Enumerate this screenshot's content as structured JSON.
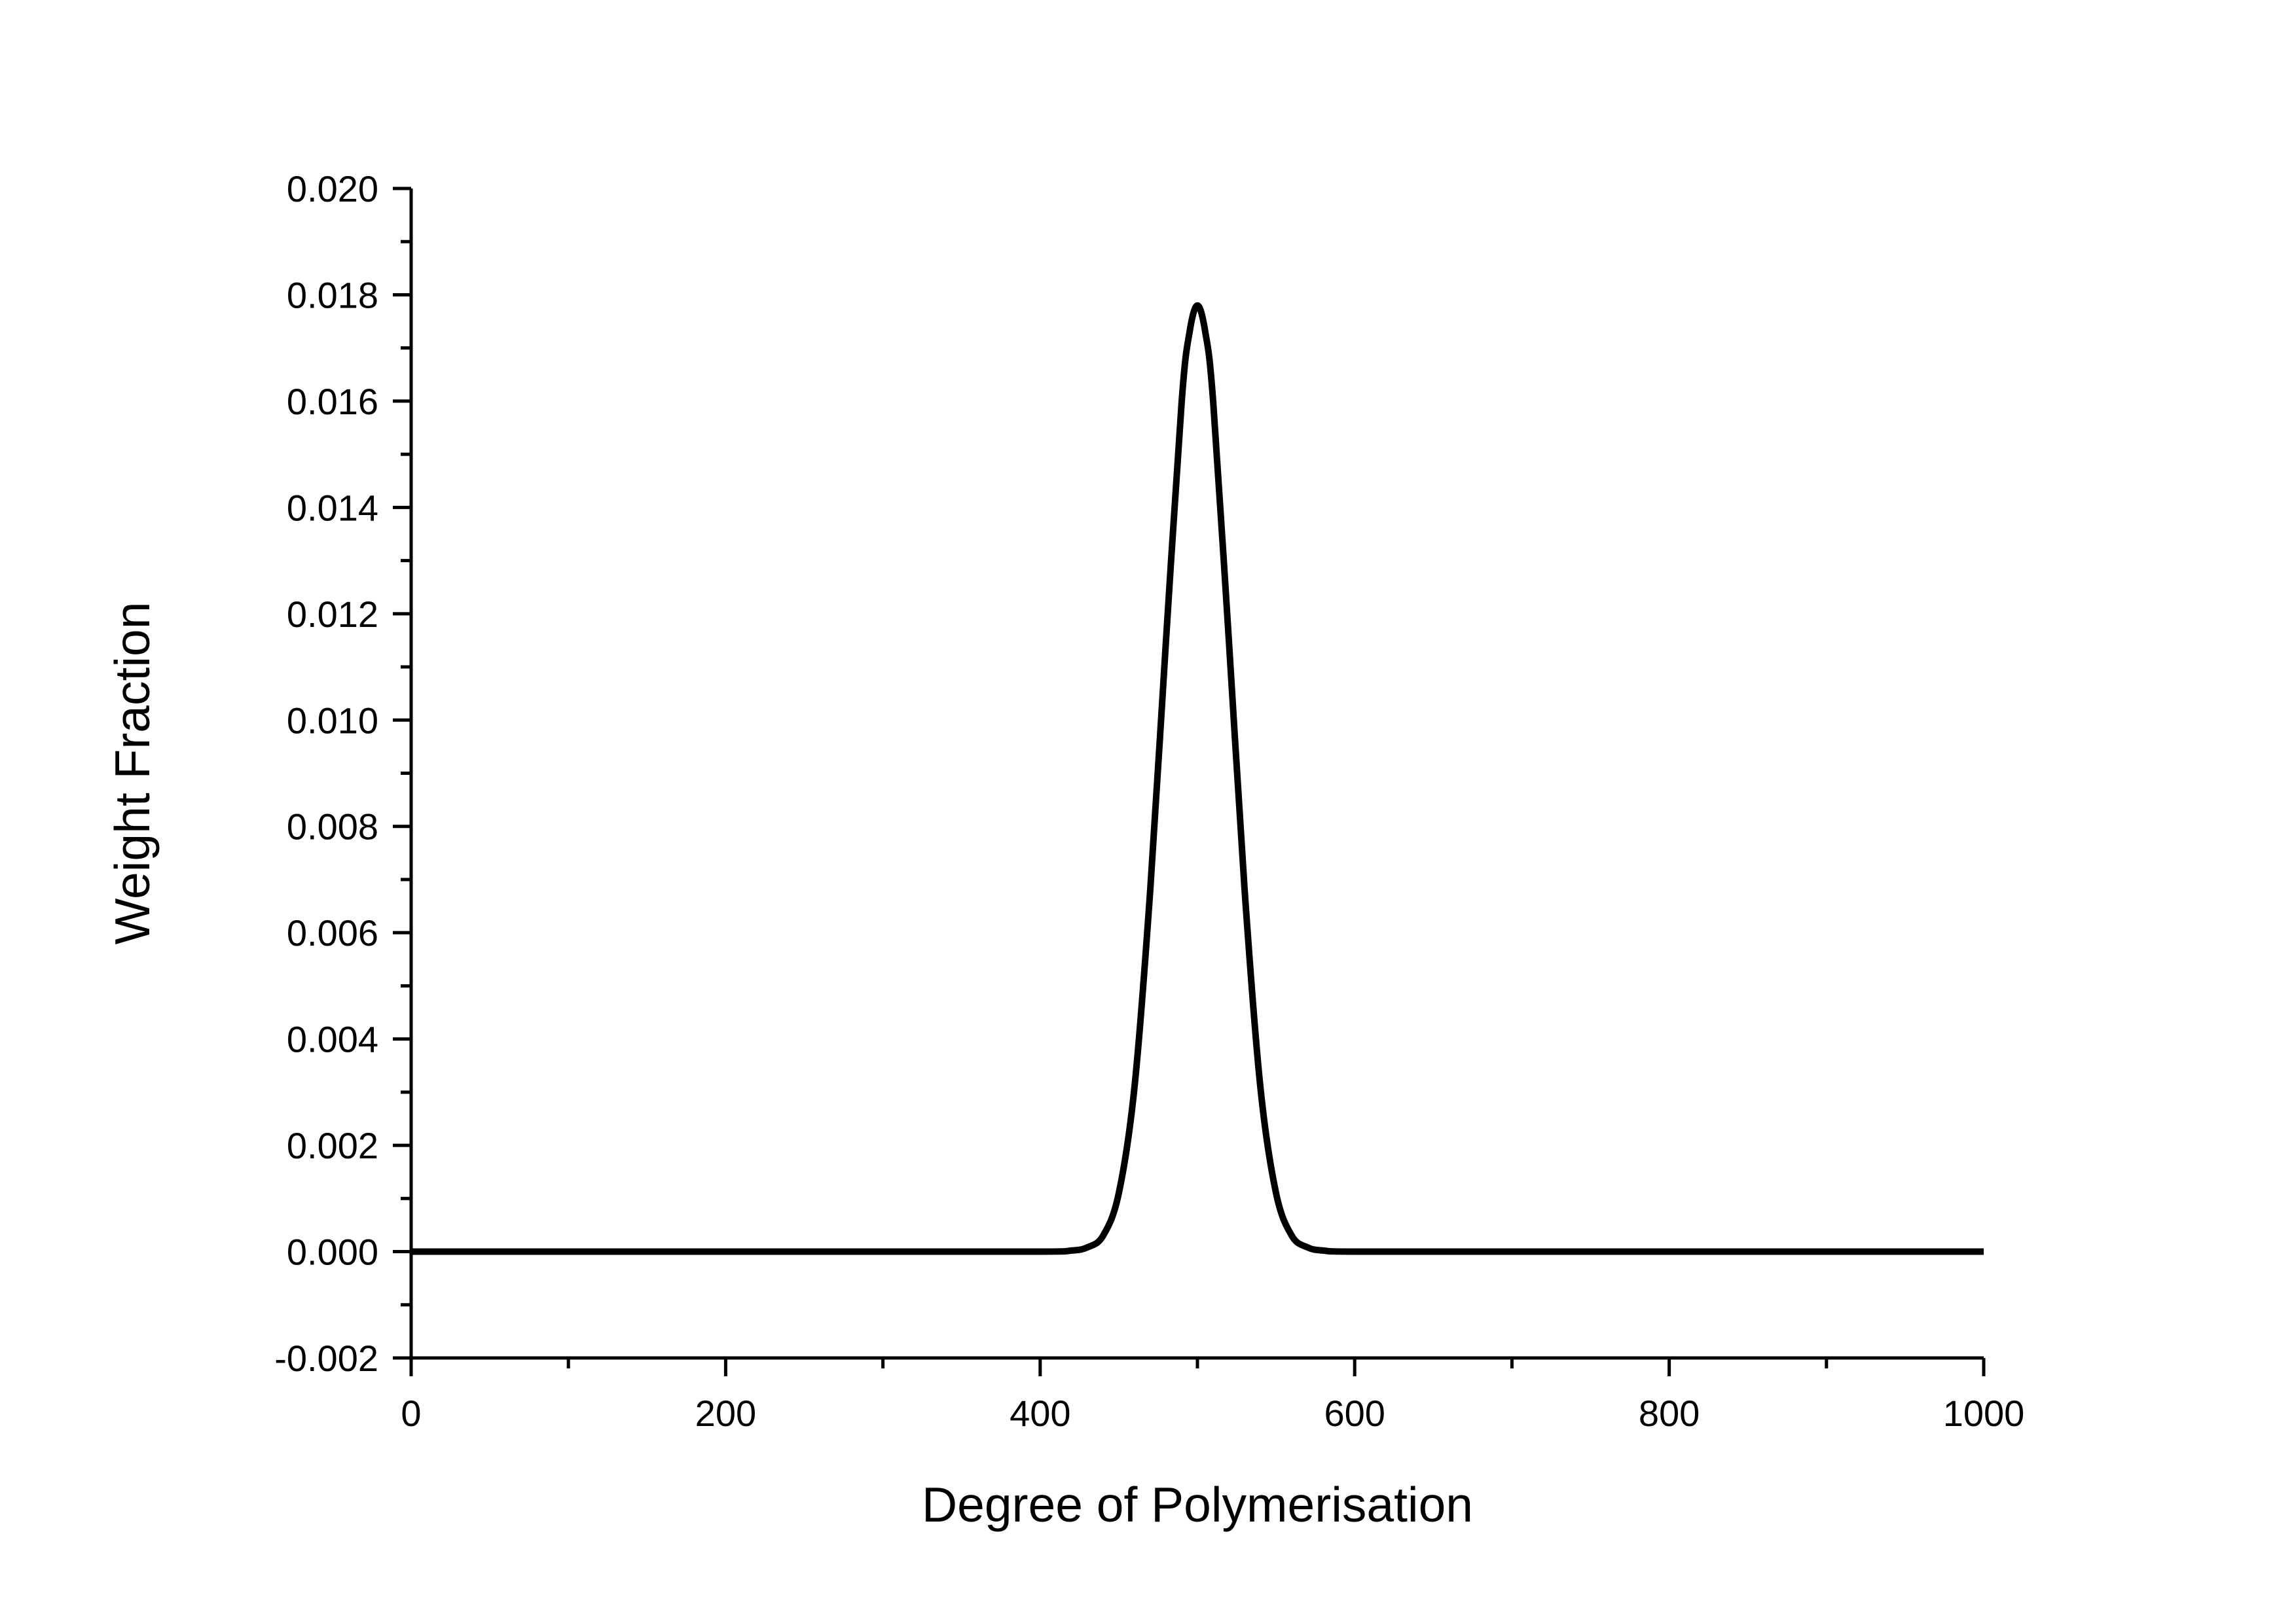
{
  "chart_data": {
    "type": "line",
    "title": "",
    "xlabel": "Degree of Polymerisation",
    "ylabel": "Weight Fraction",
    "xlim": [
      0,
      1000
    ],
    "ylim": [
      -0.002,
      0.02
    ],
    "x_ticks": [
      "0",
      "200",
      "400",
      "600",
      "800",
      "1000"
    ],
    "y_ticks": [
      "-0.002",
      "0.000",
      "0.002",
      "0.004",
      "0.006",
      "0.008",
      "0.010",
      "0.012",
      "0.014",
      "0.016",
      "0.018",
      "0.020"
    ],
    "grid": false,
    "legend": "none",
    "line_color": "#000000",
    "series": [
      {
        "x": [
          0,
          100,
          200,
          300,
          400,
          420,
          430,
          440,
          450,
          460,
          470,
          480,
          490,
          495,
          500,
          505,
          510,
          520,
          530,
          540,
          550,
          560,
          570,
          580,
          600,
          700,
          800,
          900,
          1000
        ],
        "values": [
          0,
          0,
          0,
          0,
          0,
          2e-05,
          8e-05,
          0.0003,
          0.0011,
          0.0031,
          0.0068,
          0.0115,
          0.016,
          0.0173,
          0.0178,
          0.0173,
          0.016,
          0.0115,
          0.0068,
          0.0031,
          0.0011,
          0.0003,
          8e-05,
          2e-05,
          0,
          0,
          0,
          0,
          0
        ]
      }
    ]
  }
}
